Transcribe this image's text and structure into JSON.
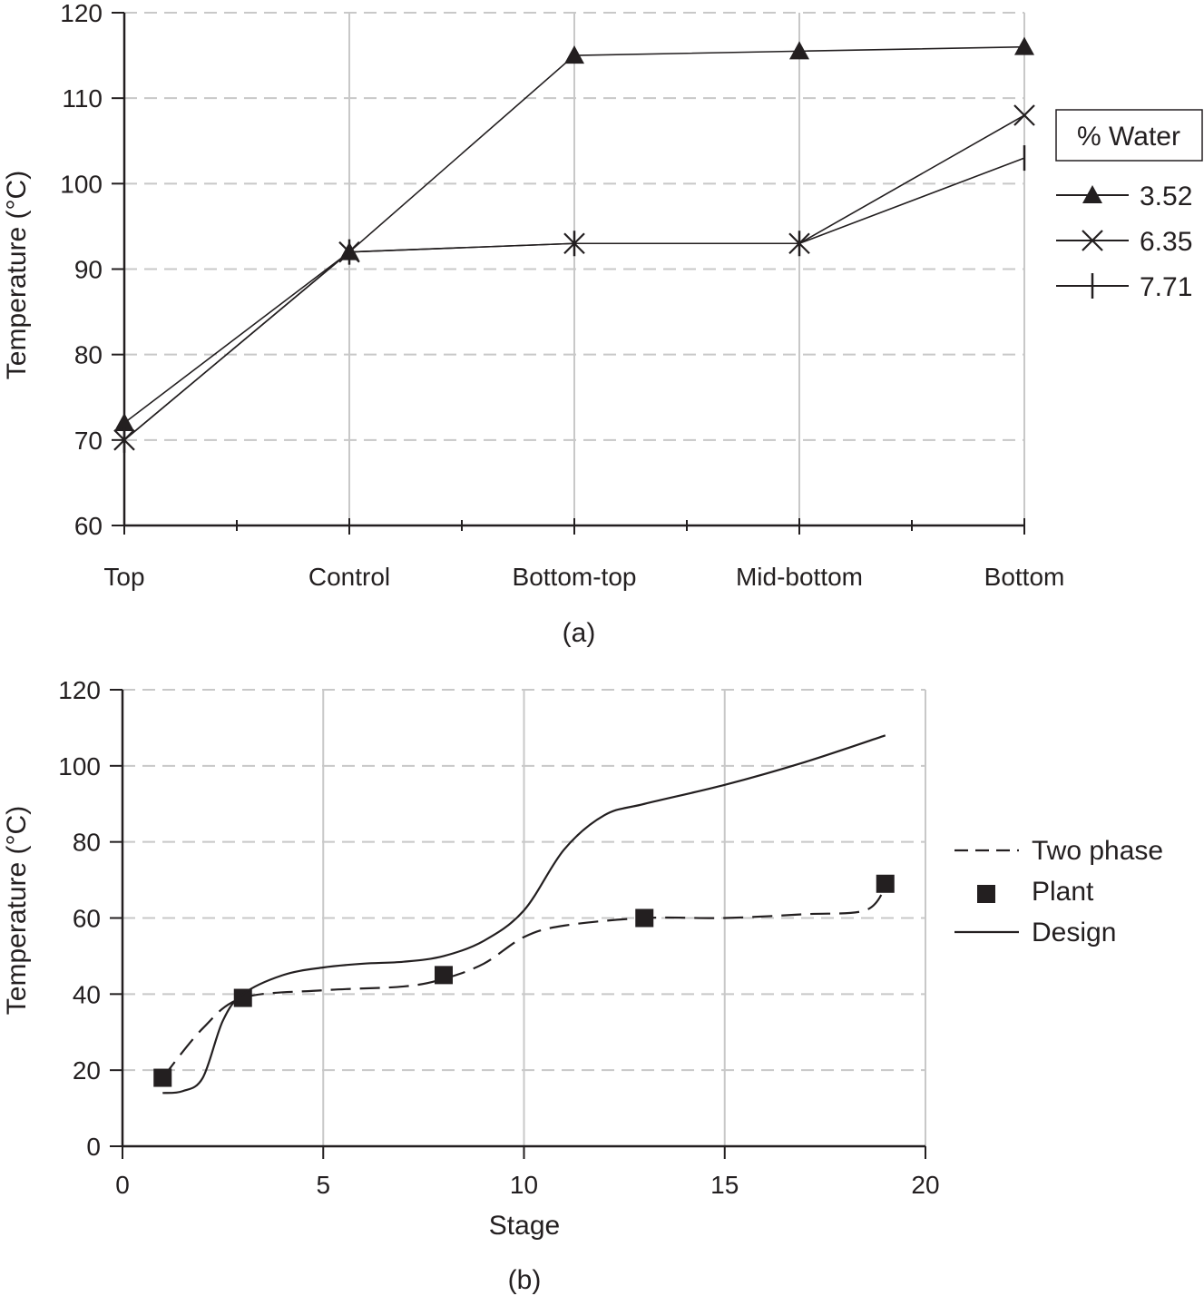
{
  "chart_data": [
    {
      "panel_label": "(a)",
      "type": "line",
      "ylabel": "Temperature (°C)",
      "xlabel": "",
      "categories": [
        "Top",
        "Control",
        "Bottom-top",
        "Mid-bottom",
        "Bottom"
      ],
      "ylim": [
        60,
        120
      ],
      "yticks": [
        60,
        70,
        80,
        90,
        100,
        110,
        120
      ],
      "grid": "horizontal dashed at y ticks, vertical solid at categories",
      "legend": {
        "title": "% Water",
        "placement": "right"
      },
      "series": [
        {
          "name": "3.52",
          "marker": "triangle",
          "values": [
            72,
            92,
            115,
            115.5,
            116
          ]
        },
        {
          "name": "6.35",
          "marker": "x",
          "values": [
            70,
            92,
            93,
            93,
            108
          ]
        },
        {
          "name": "7.71",
          "marker": "vertical-bar",
          "values": [
            70,
            92,
            93,
            93,
            103
          ]
        }
      ]
    },
    {
      "panel_label": "(b)",
      "type": "line",
      "xlabel": "Stage",
      "ylabel": "Temperature (°C)",
      "xlim": [
        0,
        20
      ],
      "ylim": [
        0,
        120
      ],
      "xticks": [
        0,
        5,
        10,
        15,
        20
      ],
      "yticks": [
        0,
        20,
        40,
        60,
        80,
        100,
        120
      ],
      "grid": "horizontal dashed at y ticks, vertical solid at x ticks",
      "legend": {
        "placement": "right"
      },
      "series": [
        {
          "name": "Two phase",
          "style": "dashed",
          "x": [
            1,
            2,
            3,
            5,
            7,
            8,
            9,
            10,
            11,
            13,
            15,
            17,
            18.5,
            19
          ],
          "y": [
            18,
            31,
            39,
            41,
            42,
            44,
            48,
            55,
            58,
            60,
            60,
            61,
            62,
            68
          ]
        },
        {
          "name": "Plant",
          "style": "square-markers",
          "x": [
            1,
            3,
            8,
            13,
            19
          ],
          "y": [
            18,
            39,
            45,
            60,
            69
          ]
        },
        {
          "name": "Design",
          "style": "solid",
          "x": [
            1,
            1.5,
            2,
            2.5,
            3,
            4,
            5,
            6,
            7,
            8,
            9,
            10,
            11,
            12,
            13,
            15,
            17,
            19
          ],
          "y": [
            14,
            14.5,
            18,
            33,
            40,
            45,
            47,
            48,
            48.5,
            50,
            54,
            62,
            78,
            87,
            90,
            95,
            101,
            108
          ]
        }
      ]
    }
  ]
}
